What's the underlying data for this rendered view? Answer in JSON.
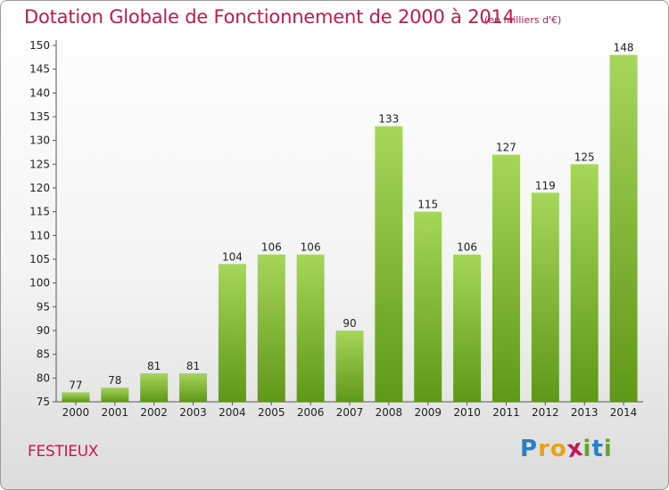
{
  "title": "Dotation Globale de Fonctionnement de 2000 à 2014",
  "subtitle": "(en milliers d'€)",
  "commune": "FESTIEUX",
  "logo": {
    "letters": [
      "P",
      "r",
      "o",
      "x",
      "i",
      "t",
      "i"
    ],
    "colors": [
      "#2a7fc4",
      "#e8a21b",
      "#e8a21b",
      "#c2185b",
      "#6aa42a",
      "#2a7fc4",
      "#6aa42a"
    ]
  },
  "colors": {
    "bar_light": "#a6d65a",
    "bar_dark": "#5f9818",
    "title": "#c8174f"
  },
  "chart_data": {
    "type": "bar",
    "categories": [
      "2000",
      "2001",
      "2002",
      "2003",
      "2004",
      "2005",
      "2006",
      "2007",
      "2008",
      "2009",
      "2010",
      "2011",
      "2012",
      "2013",
      "2014"
    ],
    "values": [
      77,
      78,
      81,
      81,
      104,
      106,
      106,
      90,
      133,
      115,
      106,
      127,
      119,
      125,
      148
    ],
    "ylim": [
      75,
      150
    ],
    "yticks": [
      75,
      80,
      85,
      90,
      95,
      100,
      105,
      110,
      115,
      120,
      125,
      130,
      135,
      140,
      145,
      150
    ],
    "grid": false,
    "data_labels": true
  }
}
